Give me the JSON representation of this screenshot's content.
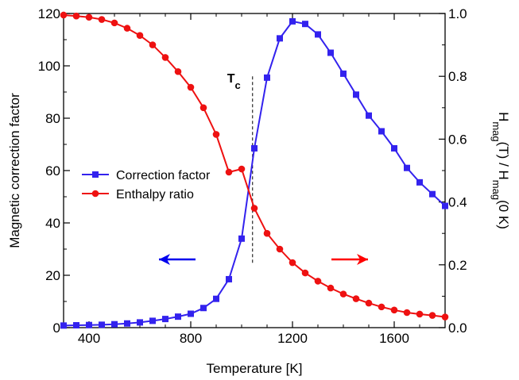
{
  "chart_data": {
    "type": "line",
    "xlabel": "Temperature [K]",
    "ylabel_left": "Magnetic correction factor",
    "ylabel_right": {
      "main": "H",
      "sub1": "mag",
      "mid": "(T) / H",
      "sub2": "mag",
      "end": "(0 K)"
    },
    "xlim": [
      300,
      1800
    ],
    "ylim_left": [
      0,
      120
    ],
    "ylim_right": [
      0,
      1.0
    ],
    "x_ticks": [
      400,
      800,
      1200,
      1600
    ],
    "x_minor_ticks": [
      300,
      500,
      600,
      700,
      900,
      1000,
      1100,
      1300,
      1400,
      1500,
      1700,
      1800
    ],
    "y_left_ticks": [
      0,
      20,
      40,
      60,
      80,
      100,
      120
    ],
    "y_right_ticks": [
      0.0,
      0.2,
      0.4,
      0.6,
      0.8,
      1.0
    ],
    "y_right_tick_labels": [
      "0.0",
      "0.2",
      "0.4",
      "0.6",
      "0.8",
      "1.0"
    ],
    "grid": false,
    "legend_position": "center-left",
    "annotations": {
      "tc": {
        "label_main": "T",
        "label_sub": "c",
        "x": 1043,
        "y_right_range": [
          0.2,
          0.8
        ]
      },
      "arrow_left": {
        "direction": "left",
        "axis": "left",
        "color": "#0000ee"
      },
      "arrow_right": {
        "direction": "right",
        "axis": "right",
        "color": "#ff0000"
      }
    },
    "series": [
      {
        "name": "Correction factor",
        "axis": "left",
        "marker": "square",
        "color": "#3322ee",
        "x": [
          300,
          350,
          400,
          450,
          500,
          550,
          600,
          650,
          700,
          750,
          800,
          850,
          900,
          950,
          1000,
          1050,
          1100,
          1150,
          1200,
          1250,
          1300,
          1350,
          1400,
          1450,
          1500,
          1550,
          1600,
          1650,
          1700,
          1750,
          1800
        ],
        "y": [
          0.8,
          0.9,
          1.0,
          1.1,
          1.3,
          1.6,
          2.0,
          2.6,
          3.3,
          4.2,
          5.3,
          7.5,
          11.0,
          18.5,
          34.0,
          68.5,
          95.5,
          110.5,
          117.0,
          116.0,
          112.0,
          105.0,
          97.0,
          89.0,
          81.0,
          75.0,
          68.5,
          61.0,
          55.5,
          51.0,
          46.5
        ]
      },
      {
        "name": "Enthalpy ratio",
        "axis": "right",
        "marker": "circle",
        "color": "#ee1111",
        "x": [
          300,
          350,
          400,
          450,
          500,
          550,
          600,
          650,
          700,
          750,
          800,
          850,
          900,
          950,
          1000,
          1050,
          1100,
          1150,
          1200,
          1250,
          1300,
          1350,
          1400,
          1450,
          1500,
          1550,
          1600,
          1650,
          1700,
          1750,
          1800
        ],
        "y": [
          0.995,
          0.992,
          0.988,
          0.981,
          0.97,
          0.953,
          0.93,
          0.9,
          0.86,
          0.815,
          0.765,
          0.7,
          0.615,
          0.495,
          0.505,
          0.38,
          0.3,
          0.25,
          0.207,
          0.174,
          0.148,
          0.126,
          0.107,
          0.092,
          0.078,
          0.066,
          0.056,
          0.048,
          0.043,
          0.039,
          0.034
        ]
      }
    ]
  }
}
